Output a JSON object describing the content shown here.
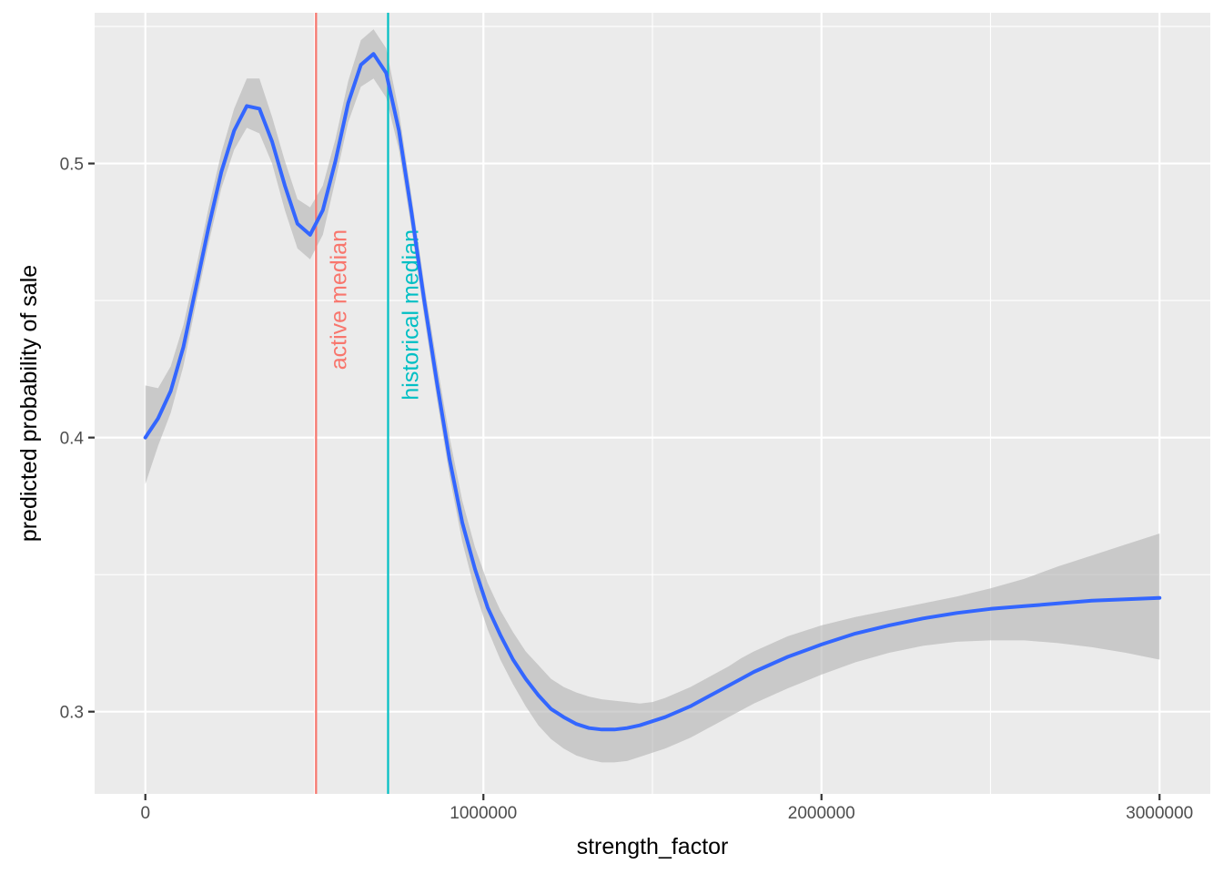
{
  "chart_data": {
    "type": "line",
    "xlabel": "strength_factor",
    "ylabel": "predicted probability of sale",
    "xlim": [
      -150000,
      3150000
    ],
    "ylim": [
      0.27,
      0.555
    ],
    "x_ticks": [
      0,
      1000000,
      2000000,
      3000000
    ],
    "x_tick_labels": [
      "0",
      "1000000",
      "2000000",
      "3000000"
    ],
    "y_ticks": [
      0.3,
      0.4,
      0.5
    ],
    "y_tick_labels": [
      "0.3",
      "0.4",
      "0.5"
    ],
    "grid": true,
    "colors": {
      "panel_bg": "#ebebeb",
      "grid": "#ffffff",
      "line": "#3366ff",
      "band": "#b3b3b3",
      "active_median": "#f8766d",
      "historical_median": "#00bfc4",
      "tick_text": "#4d4d4d"
    },
    "series": [
      {
        "x": [
          0,
          37500,
          75000,
          112500,
          150000,
          187500,
          225000,
          262500,
          300000,
          337500,
          375000,
          412500,
          450000,
          487500,
          525000,
          562500,
          600000,
          637500,
          675000,
          712500,
          750000,
          787500,
          825000,
          862500,
          900000,
          937500,
          975000,
          1012500,
          1050000,
          1087500,
          1125000,
          1162500,
          1200000,
          1237500,
          1275000,
          1312500,
          1350000,
          1387500,
          1425000,
          1462500,
          1500000,
          1537500,
          1575000,
          1612500,
          1650000,
          1687500,
          1725000,
          1762500,
          1800000,
          1900000,
          2000000,
          2100000,
          2200000,
          2300000,
          2400000,
          2500000,
          2600000,
          2700000,
          2800000,
          2900000,
          3000000
        ],
        "y": [
          0.4,
          0.407,
          0.417,
          0.433,
          0.455,
          0.477,
          0.497,
          0.512,
          0.521,
          0.52,
          0.508,
          0.492,
          0.478,
          0.474,
          0.483,
          0.501,
          0.522,
          0.536,
          0.54,
          0.533,
          0.512,
          0.482,
          0.45,
          0.42,
          0.392,
          0.369,
          0.352,
          0.338,
          0.328,
          0.319,
          0.312,
          0.306,
          0.301,
          0.298,
          0.2955,
          0.294,
          0.2935,
          0.2935,
          0.294,
          0.295,
          0.2965,
          0.298,
          0.3,
          0.302,
          0.3045,
          0.307,
          0.3095,
          0.312,
          0.3145,
          0.32,
          0.3245,
          0.3285,
          0.3315,
          0.334,
          0.336,
          0.3375,
          0.3385,
          0.3395,
          0.3405,
          0.341,
          0.3415
        ],
        "lower": [
          0.383,
          0.397,
          0.409,
          0.426,
          0.449,
          0.471,
          0.491,
          0.505,
          0.513,
          0.511,
          0.5,
          0.483,
          0.469,
          0.465,
          0.474,
          0.494,
          0.515,
          0.528,
          0.531,
          0.524,
          0.505,
          0.476,
          0.444,
          0.414,
          0.386,
          0.362,
          0.344,
          0.33,
          0.319,
          0.31,
          0.302,
          0.295,
          0.29,
          0.2865,
          0.284,
          0.2825,
          0.2815,
          0.2815,
          0.282,
          0.2835,
          0.285,
          0.2865,
          0.2885,
          0.2905,
          0.293,
          0.2955,
          0.298,
          0.3005,
          0.303,
          0.3085,
          0.3135,
          0.318,
          0.3215,
          0.324,
          0.3255,
          0.326,
          0.326,
          0.325,
          0.3235,
          0.3215,
          0.319
        ],
        "upper": [
          0.419,
          0.418,
          0.426,
          0.441,
          0.462,
          0.484,
          0.504,
          0.52,
          0.531,
          0.531,
          0.517,
          0.501,
          0.487,
          0.484,
          0.492,
          0.509,
          0.53,
          0.545,
          0.549,
          0.542,
          0.519,
          0.488,
          0.456,
          0.427,
          0.4,
          0.377,
          0.36,
          0.347,
          0.337,
          0.329,
          0.322,
          0.317,
          0.312,
          0.309,
          0.307,
          0.3055,
          0.3045,
          0.304,
          0.3035,
          0.303,
          0.3035,
          0.305,
          0.307,
          0.309,
          0.3115,
          0.314,
          0.3165,
          0.3195,
          0.322,
          0.3275,
          0.3315,
          0.3345,
          0.337,
          0.3395,
          0.342,
          0.345,
          0.3485,
          0.353,
          0.357,
          0.361,
          0.365
        ]
      }
    ],
    "vlines": [
      {
        "x": 505000,
        "label": "active median",
        "color": "#f8766d"
      },
      {
        "x": 718000,
        "label": "historical median",
        "color": "#00bfc4"
      }
    ]
  }
}
